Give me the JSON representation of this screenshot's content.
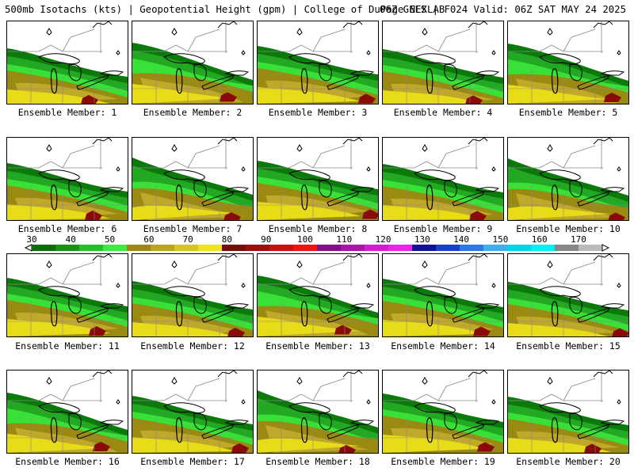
{
  "header": {
    "title": "500mb Isotachs (kts) | Geopotential Height (gpm) | College of DuPage NEXLAB",
    "run_info": "06Z GEFS | F024 Valid: 06Z SAT MAY 24 2025"
  },
  "panels": [
    {
      "label": "Ensemble Member: 1"
    },
    {
      "label": "Ensemble Member: 2"
    },
    {
      "label": "Ensemble Member: 3"
    },
    {
      "label": "Ensemble Member: 4"
    },
    {
      "label": "Ensemble Member: 5"
    },
    {
      "label": "Ensemble Member: 6"
    },
    {
      "label": "Ensemble Member: 7"
    },
    {
      "label": "Ensemble Member: 8"
    },
    {
      "label": "Ensemble Member: 9"
    },
    {
      "label": "Ensemble Member: 10"
    },
    {
      "label": "Ensemble Member: 11"
    },
    {
      "label": "Ensemble Member: 12"
    },
    {
      "label": "Ensemble Member: 13"
    },
    {
      "label": "Ensemble Member: 14"
    },
    {
      "label": "Ensemble Member: 15"
    },
    {
      "label": "Ensemble Member: 16"
    },
    {
      "label": "Ensemble Member: 17"
    },
    {
      "label": "Ensemble Member: 18"
    },
    {
      "label": "Ensemble Member: 19"
    },
    {
      "label": "Ensemble Member: 20"
    }
  ],
  "colorbar": {
    "tick_labels": [
      "30",
      "40",
      "50",
      "60",
      "70",
      "80",
      "90",
      "100",
      "110",
      "120",
      "130",
      "140",
      "150",
      "160",
      "170"
    ],
    "colors": [
      "#0a6e0a",
      "#129612",
      "#1ec41e",
      "#3aee3a",
      "#9c8a10",
      "#b8a818",
      "#d4c81e",
      "#f0e41e",
      "#7a0a0a",
      "#a00c0c",
      "#c81010",
      "#ee1414",
      "#8a0a8a",
      "#b010b0",
      "#d818d8",
      "#f020f0",
      "#1010a0",
      "#1840d0",
      "#2a78f0",
      "#3ab0f8",
      "#00d4f0",
      "#00f0f8",
      "#888888",
      "#bbbbbb"
    ]
  },
  "map_colors": {
    "green_dark": "#0b7a0b",
    "green": "#22a822",
    "green_light": "#38e038",
    "olive": "#9a8a12",
    "tan": "#c0a82a",
    "yellow": "#e8dc18",
    "maroon": "#8a0a0a",
    "outline": "#000000",
    "border": "#888888"
  }
}
